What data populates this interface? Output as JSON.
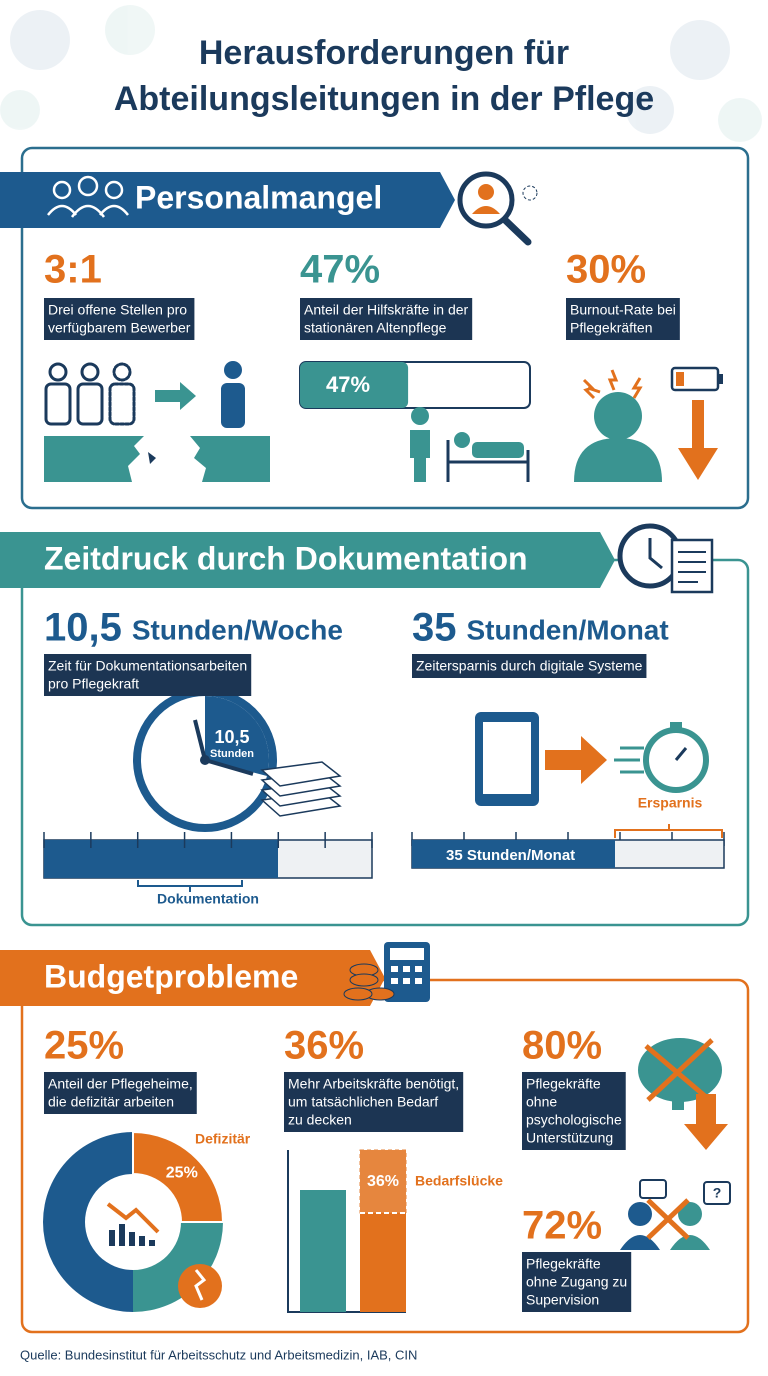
{
  "header": {
    "title": [
      "Herausforderungen für",
      "Abteilungsleitungen in der Pflege"
    ]
  },
  "personalmangel": {
    "title": "Personalmangel",
    "stats": [
      {
        "value": "3:1",
        "text": [
          "Drei offene Stellen pro",
          "verfügbarem Bewerber"
        ]
      },
      {
        "value": "47%",
        "text": [
          "Anteil der Hilfskräfte in der",
          "stationären Altenpflege"
        ],
        "bar": {
          "value": 47,
          "label": "47%"
        }
      },
      {
        "value": "30%",
        "text": [
          "Burnout-Rate bei",
          "Pflegekräften"
        ]
      }
    ]
  },
  "zeitdruck": {
    "title": "Zeitdruck durch Dokumentation",
    "stats": [
      {
        "value": "10,5",
        "unit": "Stunden/Woche",
        "text": [
          "Zeit für Dokumentationsarbeiten",
          "pro Pflegekraft"
        ],
        "clock": {
          "value": "10,5",
          "unit": "Stunden"
        },
        "bar_label": "Dokumentation"
      },
      {
        "value": "35",
        "unit": "Stunden/Monat",
        "text": [
          "Zeitersparnis durch digitale Systeme"
        ],
        "bar_label": "35 Stunden/Monat",
        "bracket_label": "Ersparnis"
      }
    ]
  },
  "budget": {
    "title": "Budgetprobleme",
    "stats": [
      {
        "value": "25%",
        "text": [
          "Anteil der Pflegeheime,",
          "die defizitär arbeiten"
        ],
        "donut": {
          "value": 25,
          "label": "25%",
          "name": "Defizitär"
        }
      },
      {
        "value": "36%",
        "text": [
          "Mehr Arbeitskräfte benötigt,",
          "um tatsächlichen Bedarf",
          "zu decken"
        ],
        "bar": {
          "label": "36%",
          "name": "Bedarfslücke"
        }
      },
      {
        "value": "80%",
        "text": [
          "Pflegekräfte",
          "ohne",
          "psychologische",
          "Unterstützung"
        ]
      },
      {
        "value": "72%",
        "text": [
          "Pflegekräfte",
          "ohne Zugang zu",
          "Supervision"
        ]
      }
    ]
  },
  "source": "Quelle: Bundesinstitut für Arbeitsschutz und Arbeitsmedizin, IAB, CIN"
}
